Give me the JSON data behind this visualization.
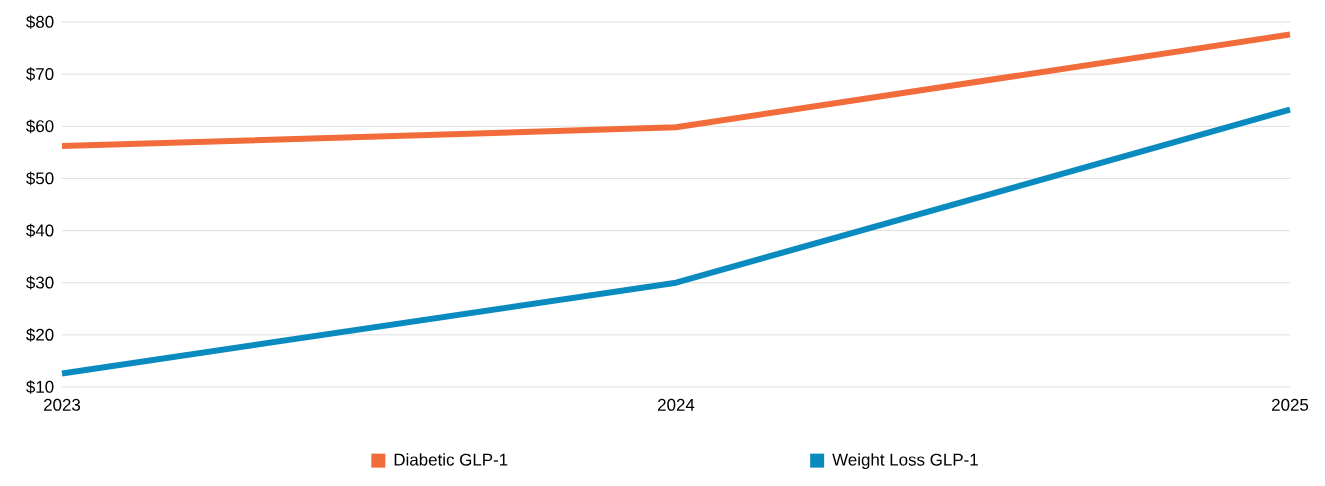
{
  "chart_data": {
    "type": "line",
    "x": [
      2023,
      2024,
      2025
    ],
    "series": [
      {
        "name": "Diabetic GLP-1",
        "color": "#f26b3a",
        "values": [
          56.2,
          59.8,
          77.6
        ]
      },
      {
        "name": "Weight Loss GLP-1",
        "color": "#0a8bbf",
        "values": [
          12.6,
          30,
          63.2
        ]
      }
    ],
    "xlim": [
      2023,
      2025
    ],
    "xticks": [
      2023,
      2024,
      2025
    ],
    "ylim": [
      10,
      80
    ],
    "yticks": [
      {
        "value": 10,
        "label": "$10"
      },
      {
        "value": 20,
        "label": "$20"
      },
      {
        "value": 30,
        "label": "$30"
      },
      {
        "value": 40,
        "label": "$40"
      },
      {
        "value": 50,
        "label": "$50"
      },
      {
        "value": 60,
        "label": "$60"
      },
      {
        "value": 70,
        "label": "$70"
      },
      {
        "value": 80,
        "label": "$80"
      }
    ],
    "grid": "y",
    "legend": "bottom",
    "marker": "none",
    "line_style": "solid"
  }
}
